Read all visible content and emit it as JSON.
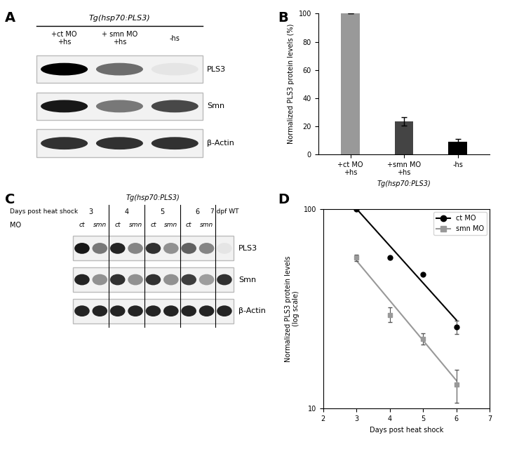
{
  "blots": [
    {
      "panel": "A",
      "title": "Tg(hsp70:PLS3)",
      "lanes": [
        "+ct MO\n+hs",
        "+ smn MO\n+hs",
        "-hs"
      ],
      "rows": [
        {
          "name": "PLS3",
          "intensity": [
            1.0,
            0.55,
            0.05
          ]
        },
        {
          "name": "Smn",
          "intensity": [
            0.9,
            0.5,
            0.7
          ]
        },
        {
          "name": "β-Actin",
          "intensity": [
            0.8,
            0.8,
            0.8
          ]
        }
      ]
    },
    {
      "panel": "C",
      "title": "Tg(hsp70:PLS3)",
      "group_title": "Days post heat shock",
      "row_label": "MO",
      "groups": [
        {
          "label": "3",
          "lanes": [
            "ct",
            "smn"
          ]
        },
        {
          "label": "4",
          "lanes": [
            "ct",
            "smn"
          ]
        },
        {
          "label": "5",
          "lanes": [
            "ct",
            "smn"
          ]
        },
        {
          "label": "6",
          "lanes": [
            "ct",
            "smn"
          ]
        },
        {
          "label": "7 dpf WT",
          "lanes": [
            null
          ]
        }
      ],
      "rows": [
        {
          "name": "PLS3",
          "intensity": [
            0.9,
            0.5,
            0.85,
            0.45,
            0.8,
            0.4,
            0.6,
            0.45,
            0.05
          ]
        },
        {
          "name": "Smn",
          "intensity": [
            0.85,
            0.4,
            0.8,
            0.4,
            0.8,
            0.4,
            0.75,
            0.35,
            0.8
          ]
        },
        {
          "name": "β-Actin",
          "intensity": [
            0.85,
            0.85,
            0.85,
            0.85,
            0.85,
            0.85,
            0.85,
            0.85,
            0.85
          ]
        }
      ]
    }
  ],
  "chart_data": [
    {
      "panel": "B",
      "type": "bar",
      "categories": [
        "+ct MO\n+hs",
        "+smn MO\n+hs",
        "-hs"
      ],
      "values": [
        100,
        23.5,
        9
      ],
      "errors": [
        0,
        3,
        2
      ],
      "colors": [
        "#999999",
        "#444444",
        "#000000"
      ],
      "ylabel": "Normalized PLS3 protein levels (%)",
      "xlabel": "Tg(hsp70:PLS3)",
      "ylim": [
        0,
        100
      ],
      "yticks": [
        0,
        20,
        40,
        60,
        80,
        100
      ]
    },
    {
      "panel": "D",
      "type": "line",
      "log": "y",
      "xlabel": "Days post heat shock",
      "ylabel": "Normalized PLS3 protein levels\n(log scale)",
      "xlim": [
        2,
        7
      ],
      "xticks": [
        2,
        3,
        4,
        5,
        6,
        7
      ],
      "ylim": [
        10,
        100
      ],
      "yticks": [
        10,
        100
      ],
      "legend": "upper right",
      "series": [
        {
          "name": "ct MO",
          "color": "#000000",
          "marker": "o",
          "x": [
            3,
            4,
            5,
            6
          ],
          "values": [
            100,
            57,
            47,
            25.6
          ],
          "errors": [
            0,
            0,
            0,
            2
          ],
          "fit": [
            100,
            65.2,
            42.5,
            27.7
          ]
        },
        {
          "name": "smn MO",
          "color": "#999999",
          "marker": "s",
          "x": [
            3,
            4,
            5,
            6
          ],
          "values": [
            57,
            29.5,
            22.4,
            13.2
          ],
          "errors": [
            2,
            2.5,
            1.5,
            2.5
          ],
          "fit": [
            55,
            34.7,
            21.9,
            13.8
          ]
        }
      ]
    }
  ]
}
